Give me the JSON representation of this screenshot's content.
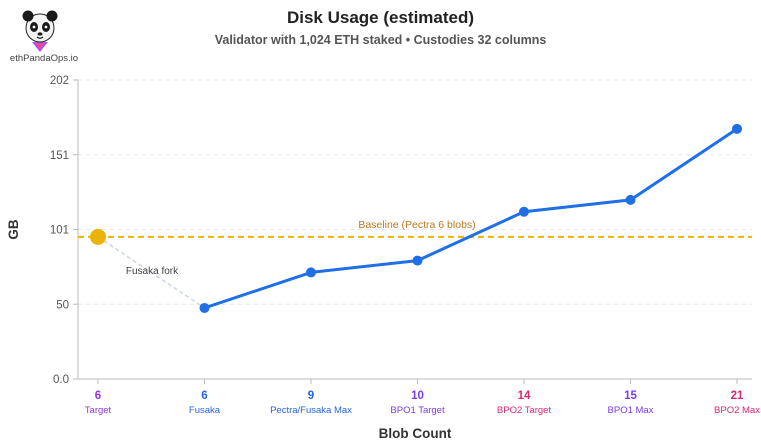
{
  "header": {
    "title": "Disk Usage (estimated)",
    "subtitle": "Validator with 1,024 ETH staked • Custodies 32 columns",
    "logo_text": "ethPandaOps.io"
  },
  "chart_data": {
    "type": "line",
    "title": "Disk Usage (estimated)",
    "subtitle": "Validator with 1,024 ETH staked • Custodies 32 columns",
    "xlabel": "Blob Count",
    "ylabel": "GB",
    "ylim": [
      0,
      202
    ],
    "yticks": [
      "0.0",
      "50",
      "101",
      "151",
      "202"
    ],
    "categories": [
      {
        "num": "6",
        "label": "Target",
        "color": "#9333ea"
      },
      {
        "num": "6",
        "label": "Fusaka",
        "color": "#2563eb"
      },
      {
        "num": "9",
        "label": "Pectra/Fusaka Max",
        "color": "#2563eb"
      },
      {
        "num": "10",
        "label": "BPO1 Target",
        "color": "#7c3aed"
      },
      {
        "num": "14",
        "label": "BPO2 Target",
        "color": "#db2777"
      },
      {
        "num": "15",
        "label": "BPO1 Max",
        "color": "#7c3aed"
      },
      {
        "num": "21",
        "label": "BPO2 Max",
        "color": "#db2777"
      }
    ],
    "series": [
      {
        "values": [
          null,
          48,
          72,
          80,
          113,
          121,
          169
        ],
        "color": "#1f6fe5"
      }
    ],
    "baseline": {
      "value": 96,
      "label": "Baseline (Pectra 6 blobs)",
      "color": "#eab308"
    },
    "annotation": {
      "text": "Fusaka fork",
      "from_category": 0,
      "to_category": 1
    },
    "grid": true
  }
}
